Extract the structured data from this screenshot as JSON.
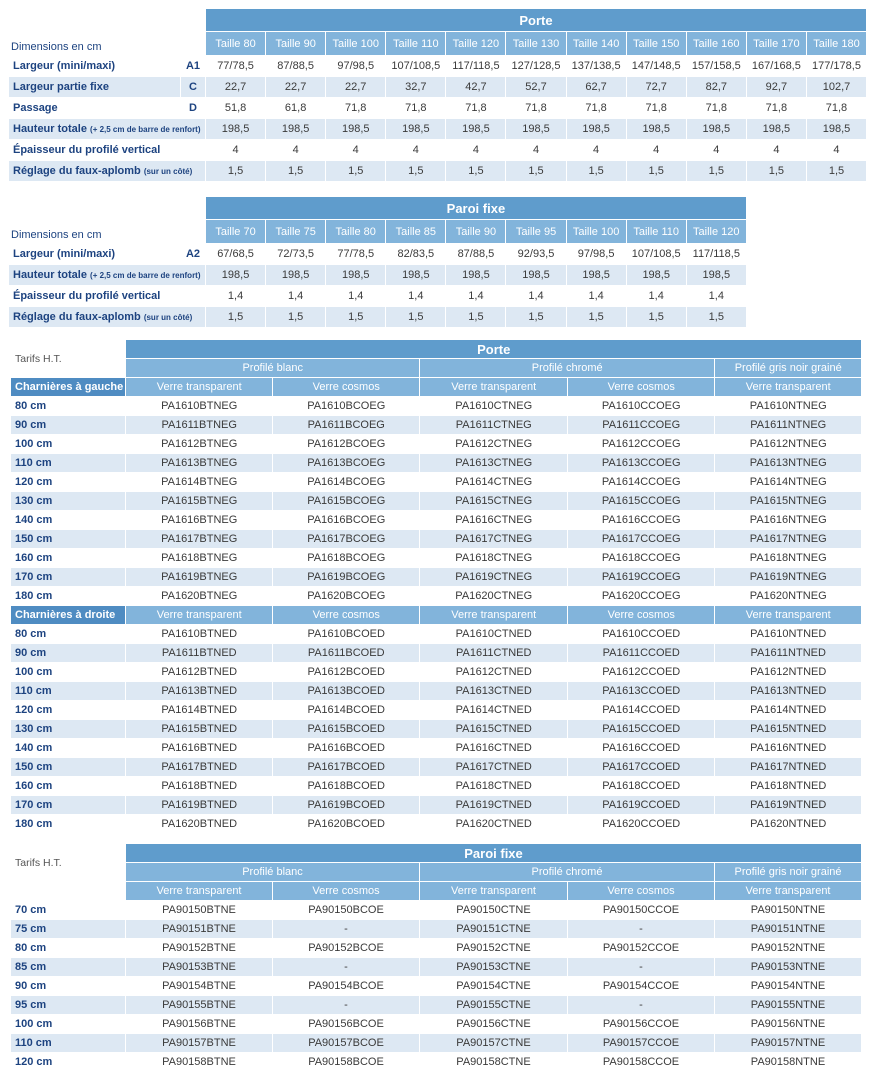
{
  "door_dimensions": {
    "title": "Porte",
    "caption": "Dimensions en cm",
    "columns": [
      "Taille 80",
      "Taille 90",
      "Taille 100",
      "Taille 110",
      "Taille 120",
      "Taille 130",
      "Taille 140",
      "Taille 150",
      "Taille 160",
      "Taille 170",
      "Taille 180"
    ],
    "rows": [
      {
        "label": "Largeur (mini/maxi)",
        "code": "A1",
        "values": [
          "77/78,5",
          "87/88,5",
          "97/98,5",
          "107/108,5",
          "117/118,5",
          "127/128,5",
          "137/138,5",
          "147/148,5",
          "157/158,5",
          "167/168,5",
          "177/178,5"
        ]
      },
      {
        "label": "Largeur partie fixe",
        "code": "C",
        "values": [
          "22,7",
          "22,7",
          "22,7",
          "32,7",
          "42,7",
          "52,7",
          "62,7",
          "72,7",
          "82,7",
          "92,7",
          "102,7"
        ]
      },
      {
        "label": "Passage",
        "code": "D",
        "values": [
          "51,8",
          "61,8",
          "71,8",
          "71,8",
          "71,8",
          "71,8",
          "71,8",
          "71,8",
          "71,8",
          "71,8",
          "71,8"
        ]
      },
      {
        "label": "Hauteur totale",
        "note": "(+ 2,5 cm de barre de renfort)",
        "values": [
          "198,5",
          "198,5",
          "198,5",
          "198,5",
          "198,5",
          "198,5",
          "198,5",
          "198,5",
          "198,5",
          "198,5",
          "198,5"
        ]
      },
      {
        "label": "Épaisseur du profilé vertical",
        "values": [
          "4",
          "4",
          "4",
          "4",
          "4",
          "4",
          "4",
          "4",
          "4",
          "4",
          "4"
        ]
      },
      {
        "label": "Réglage du faux-aplomb",
        "note": "(sur un côté)",
        "values": [
          "1,5",
          "1,5",
          "1,5",
          "1,5",
          "1,5",
          "1,5",
          "1,5",
          "1,5",
          "1,5",
          "1,5",
          "1,5"
        ]
      }
    ]
  },
  "fixed_panel_dimensions": {
    "title": "Paroi fixe",
    "caption": "Dimensions en cm",
    "columns": [
      "Taille 70",
      "Taille 75",
      "Taille 80",
      "Taille 85",
      "Taille 90",
      "Taille 95",
      "Taille 100",
      "Taille 110",
      "Taille 120"
    ],
    "rows": [
      {
        "label": "Largeur (mini/maxi)",
        "code": "A2",
        "values": [
          "67/68,5",
          "72/73,5",
          "77/78,5",
          "82/83,5",
          "87/88,5",
          "92/93,5",
          "97/98,5",
          "107/108,5",
          "117/118,5"
        ]
      },
      {
        "label": "Hauteur totale",
        "note": "(+ 2,5 cm de barre de renfort)",
        "values": [
          "198,5",
          "198,5",
          "198,5",
          "198,5",
          "198,5",
          "198,5",
          "198,5",
          "198,5",
          "198,5"
        ]
      },
      {
        "label": "Épaisseur du profilé vertical",
        "values": [
          "1,4",
          "1,4",
          "1,4",
          "1,4",
          "1,4",
          "1,4",
          "1,4",
          "1,4",
          "1,4"
        ]
      },
      {
        "label": "Réglage du faux-aplomb",
        "note": "(sur un côté)",
        "values": [
          "1,5",
          "1,5",
          "1,5",
          "1,5",
          "1,5",
          "1,5",
          "1,5",
          "1,5",
          "1,5"
        ]
      }
    ]
  },
  "door_prices": {
    "caption": "Tarifs H.T.",
    "title": "Porte",
    "groups": [
      "Profilé blanc",
      "Profilé chromé",
      "Profilé gris noir grainé"
    ],
    "sections": [
      {
        "title": "Charnières à gauche",
        "columns": [
          "Verre transparent",
          "Verre cosmos",
          "Verre transparent",
          "Verre cosmos",
          "Verre transparent"
        ],
        "rows": [
          {
            "size": "80 cm",
            "codes": [
              "PA1610BTNEG",
              "PA1610BCOEG",
              "PA1610CTNEG",
              "PA1610CCOEG",
              "PA1610NTNEG"
            ]
          },
          {
            "size": "90 cm",
            "codes": [
              "PA1611BTNEG",
              "PA1611BCOEG",
              "PA1611CTNEG",
              "PA1611CCOEG",
              "PA1611NTNEG"
            ]
          },
          {
            "size": "100 cm",
            "codes": [
              "PA1612BTNEG",
              "PA1612BCOEG",
              "PA1612CTNEG",
              "PA1612CCOEG",
              "PA1612NTNEG"
            ]
          },
          {
            "size": "110 cm",
            "codes": [
              "PA1613BTNEG",
              "PA1613BCOEG",
              "PA1613CTNEG",
              "PA1613CCOEG",
              "PA1613NTNEG"
            ]
          },
          {
            "size": "120 cm",
            "codes": [
              "PA1614BTNEG",
              "PA1614BCOEG",
              "PA1614CTNEG",
              "PA1614CCOEG",
              "PA1614NTNEG"
            ]
          },
          {
            "size": "130 cm",
            "codes": [
              "PA1615BTNEG",
              "PA1615BCOEG",
              "PA1615CTNEG",
              "PA1615CCOEG",
              "PA1615NTNEG"
            ]
          },
          {
            "size": "140 cm",
            "codes": [
              "PA1616BTNEG",
              "PA1616BCOEG",
              "PA1616CTNEG",
              "PA1616CCOEG",
              "PA1616NTNEG"
            ]
          },
          {
            "size": "150 cm",
            "codes": [
              "PA1617BTNEG",
              "PA1617BCOEG",
              "PA1617CTNEG",
              "PA1617CCOEG",
              "PA1617NTNEG"
            ]
          },
          {
            "size": "160 cm",
            "codes": [
              "PA1618BTNEG",
              "PA1618BCOEG",
              "PA1618CTNEG",
              "PA1618CCOEG",
              "PA1618NTNEG"
            ]
          },
          {
            "size": "170 cm",
            "codes": [
              "PA1619BTNEG",
              "PA1619BCOEG",
              "PA1619CTNEG",
              "PA1619CCOEG",
              "PA1619NTNEG"
            ]
          },
          {
            "size": "180 cm",
            "codes": [
              "PA1620BTNEG",
              "PA1620BCOEG",
              "PA1620CTNEG",
              "PA1620CCOEG",
              "PA1620NTNEG"
            ]
          }
        ]
      },
      {
        "title": "Charnières à droite",
        "columns": [
          "Verre transparent",
          "Verre cosmos",
          "Verre transparent",
          "Verre cosmos",
          "Verre transparent"
        ],
        "rows": [
          {
            "size": "80 cm",
            "codes": [
              "PA1610BTNED",
              "PA1610BCOED",
              "PA1610CTNED",
              "PA1610CCOED",
              "PA1610NTNED"
            ]
          },
          {
            "size": "90 cm",
            "codes": [
              "PA1611BTNED",
              "PA1611BCOED",
              "PA1611CTNED",
              "PA1611CCOED",
              "PA1611NTNED"
            ]
          },
          {
            "size": "100 cm",
            "codes": [
              "PA1612BTNED",
              "PA1612BCOED",
              "PA1612CTNED",
              "PA1612CCOED",
              "PA1612NTNED"
            ]
          },
          {
            "size": "110 cm",
            "codes": [
              "PA1613BTNED",
              "PA1613BCOED",
              "PA1613CTNED",
              "PA1613CCOED",
              "PA1613NTNED"
            ]
          },
          {
            "size": "120 cm",
            "codes": [
              "PA1614BTNED",
              "PA1614BCOED",
              "PA1614CTNED",
              "PA1614CCOED",
              "PA1614NTNED"
            ]
          },
          {
            "size": "130 cm",
            "codes": [
              "PA1615BTNED",
              "PA1615BCOED",
              "PA1615CTNED",
              "PA1615CCOED",
              "PA1615NTNED"
            ]
          },
          {
            "size": "140 cm",
            "codes": [
              "PA1616BTNED",
              "PA1616BCOED",
              "PA1616CTNED",
              "PA1616CCOED",
              "PA1616NTNED"
            ]
          },
          {
            "size": "150 cm",
            "codes": [
              "PA1617BTNED",
              "PA1617BCOED",
              "PA1617CTNED",
              "PA1617CCOED",
              "PA1617NTNED"
            ]
          },
          {
            "size": "160 cm",
            "codes": [
              "PA1618BTNED",
              "PA1618BCOED",
              "PA1618CTNED",
              "PA1618CCOED",
              "PA1618NTNED"
            ]
          },
          {
            "size": "170 cm",
            "codes": [
              "PA1619BTNED",
              "PA1619BCOED",
              "PA1619CTNED",
              "PA1619CCOED",
              "PA1619NTNED"
            ]
          },
          {
            "size": "180 cm",
            "codes": [
              "PA1620BTNED",
              "PA1620BCOED",
              "PA1620CTNED",
              "PA1620CCOED",
              "PA1620NTNED"
            ]
          }
        ]
      }
    ]
  },
  "fixed_panel_prices": {
    "caption": "Tarifs H.T.",
    "title": "Paroi fixe",
    "groups": [
      "Profilé blanc",
      "Profilé chromé",
      "Profilé gris noir grainé"
    ],
    "sections": [
      {
        "columns": [
          "Verre transparent",
          "Verre cosmos",
          "Verre transparent",
          "Verre cosmos",
          "Verre transparent"
        ],
        "rows": [
          {
            "size": "70 cm",
            "codes": [
              "PA90150BTNE",
              "PA90150BCOE",
              "PA90150CTNE",
              "PA90150CCOE",
              "PA90150NTNE"
            ]
          },
          {
            "size": "75 cm",
            "codes": [
              "PA90151BTNE",
              "-",
              "PA90151CTNE",
              "-",
              "PA90151NTNE"
            ]
          },
          {
            "size": "80 cm",
            "codes": [
              "PA90152BTNE",
              "PA90152BCOE",
              "PA90152CTNE",
              "PA90152CCOE",
              "PA90152NTNE"
            ]
          },
          {
            "size": "85 cm",
            "codes": [
              "PA90153BTNE",
              "-",
              "PA90153CTNE",
              "-",
              "PA90153NTNE"
            ]
          },
          {
            "size": "90 cm",
            "codes": [
              "PA90154BTNE",
              "PA90154BCOE",
              "PA90154CTNE",
              "PA90154CCOE",
              "PA90154NTNE"
            ]
          },
          {
            "size": "95 cm",
            "codes": [
              "PA90155BTNE",
              "-",
              "PA90155CTNE",
              "-",
              "PA90155NTNE"
            ]
          },
          {
            "size": "100 cm",
            "codes": [
              "PA90156BTNE",
              "PA90156BCOE",
              "PA90156CTNE",
              "PA90156CCOE",
              "PA90156NTNE"
            ]
          },
          {
            "size": "110 cm",
            "codes": [
              "PA90157BTNE",
              "PA90157BCOE",
              "PA90157CTNE",
              "PA90157CCOE",
              "PA90157NTNE"
            ]
          },
          {
            "size": "120 cm",
            "codes": [
              "PA90158BTNE",
              "PA90158BCOE",
              "PA90158CTNE",
              "PA90158CCOE",
              "PA90158NTNE"
            ]
          }
        ]
      }
    ]
  }
}
